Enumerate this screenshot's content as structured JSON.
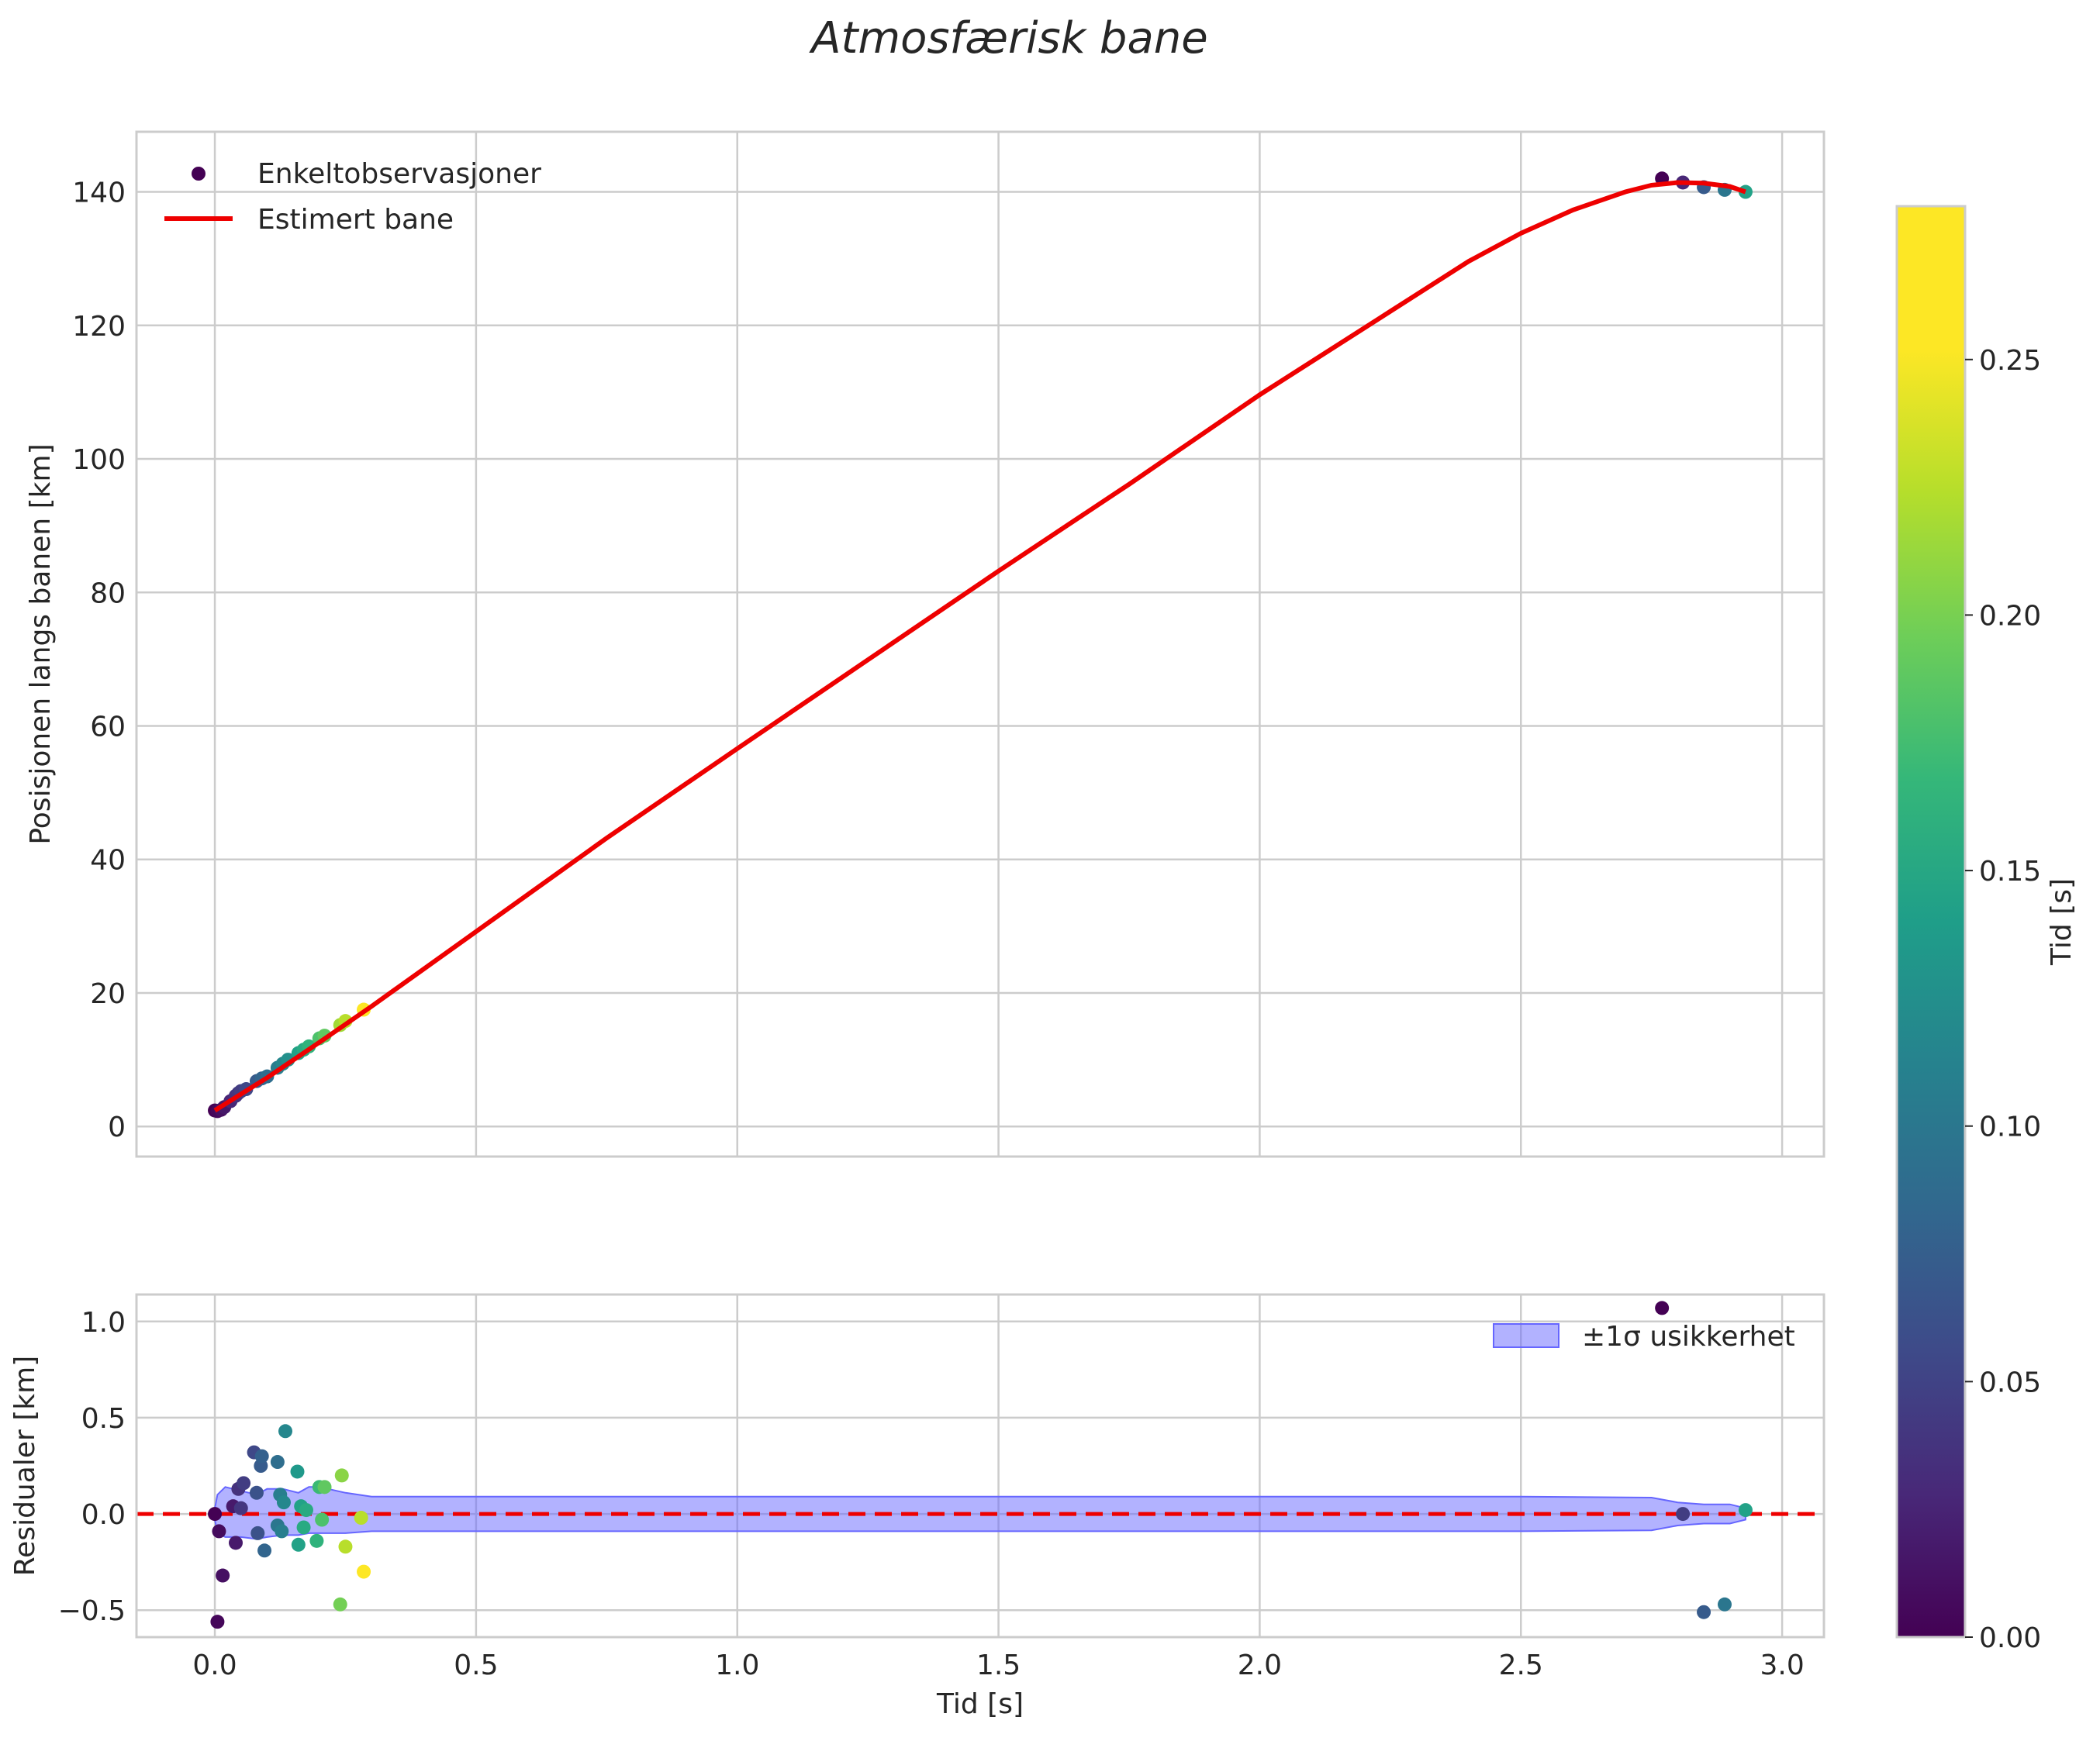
{
  "chart_data": [
    {
      "type": "scatter",
      "title": "Atmosfærisk bane",
      "xlabel": "",
      "ylabel": "Posisjonen langs banen [km]",
      "xlim": [
        -0.15,
        3.08
      ],
      "ylim": [
        -4.5,
        149
      ],
      "xticks": [
        0.0,
        0.5,
        1.0,
        1.5,
        2.0,
        2.5,
        3.0
      ],
      "yticks": [
        0,
        20,
        40,
        60,
        80,
        100,
        120,
        140
      ],
      "ytick_labels": [
        "0",
        "20",
        "40",
        "60",
        "80",
        "100",
        "120",
        "140"
      ],
      "grid": true,
      "legend_position": "upper-left",
      "legend": [
        "Enkeltobservasjoner",
        "Estimert bane"
      ],
      "series": [
        {
          "name": "Enkeltobservasjoner",
          "kind": "scatter",
          "colored_by": "Tid [s]",
          "points": [
            {
              "x": 0.0,
              "y": 2.4,
              "c": 0.0
            },
            {
              "x": 0.005,
              "y": 2.3,
              "c": 0.005
            },
            {
              "x": 0.012,
              "y": 2.5,
              "c": 0.012
            },
            {
              "x": 0.018,
              "y": 2.9,
              "c": 0.018
            },
            {
              "x": 0.03,
              "y": 3.8,
              "c": 0.03
            },
            {
              "x": 0.04,
              "y": 4.6,
              "c": 0.04
            },
            {
              "x": 0.045,
              "y": 5.0,
              "c": 0.045
            },
            {
              "x": 0.05,
              "y": 5.3,
              "c": 0.05
            },
            {
              "x": 0.06,
              "y": 5.6,
              "c": 0.06
            },
            {
              "x": 0.08,
              "y": 6.8,
              "c": 0.08
            },
            {
              "x": 0.09,
              "y": 7.2,
              "c": 0.09
            },
            {
              "x": 0.1,
              "y": 7.5,
              "c": 0.1
            },
            {
              "x": 0.12,
              "y": 8.8,
              "c": 0.12
            },
            {
              "x": 0.13,
              "y": 9.4,
              "c": 0.13
            },
            {
              "x": 0.14,
              "y": 10.0,
              "c": 0.14
            },
            {
              "x": 0.16,
              "y": 11.0,
              "c": 0.16
            },
            {
              "x": 0.17,
              "y": 11.5,
              "c": 0.17
            },
            {
              "x": 0.18,
              "y": 12.0,
              "c": 0.18
            },
            {
              "x": 0.2,
              "y": 13.2,
              "c": 0.2
            },
            {
              "x": 0.21,
              "y": 13.6,
              "c": 0.21
            },
            {
              "x": 0.24,
              "y": 15.2,
              "c": 0.24
            },
            {
              "x": 0.25,
              "y": 15.8,
              "c": 0.25
            },
            {
              "x": 0.285,
              "y": 17.5,
              "c": 0.28
            },
            {
              "x": 2.77,
              "y": 142.0,
              "c": 0.0
            },
            {
              "x": 2.81,
              "y": 141.4,
              "c": 0.03
            },
            {
              "x": 2.85,
              "y": 140.7,
              "c": 0.08
            },
            {
              "x": 2.89,
              "y": 140.3,
              "c": 0.11
            },
            {
              "x": 2.93,
              "y": 140.0,
              "c": 0.16
            }
          ]
        },
        {
          "name": "Estimert bane",
          "kind": "line",
          "color": "#ee0000",
          "points": [
            {
              "x": 0.0,
              "y": 2.4
            },
            {
              "x": 0.1,
              "y": 7.3
            },
            {
              "x": 0.2,
              "y": 12.6
            },
            {
              "x": 0.3,
              "y": 18.0
            },
            {
              "x": 0.5,
              "y": 29.2
            },
            {
              "x": 0.75,
              "y": 43.2
            },
            {
              "x": 1.0,
              "y": 56.6
            },
            {
              "x": 1.25,
              "y": 69.9
            },
            {
              "x": 1.5,
              "y": 83.2
            },
            {
              "x": 1.75,
              "y": 96.2
            },
            {
              "x": 2.0,
              "y": 109.6
            },
            {
              "x": 2.25,
              "y": 122.1
            },
            {
              "x": 2.4,
              "y": 129.6
            },
            {
              "x": 2.5,
              "y": 133.8
            },
            {
              "x": 2.6,
              "y": 137.3
            },
            {
              "x": 2.7,
              "y": 140.0
            },
            {
              "x": 2.75,
              "y": 141.0
            },
            {
              "x": 2.8,
              "y": 141.4
            },
            {
              "x": 2.85,
              "y": 141.3
            },
            {
              "x": 2.9,
              "y": 140.8
            },
            {
              "x": 2.93,
              "y": 140.0
            }
          ]
        }
      ]
    },
    {
      "type": "scatter",
      "title": "",
      "xlabel": "Tid [s]",
      "ylabel": "Residualer [km]",
      "xlim": [
        -0.15,
        3.08
      ],
      "ylim": [
        -0.64,
        1.14
      ],
      "xticks": [
        0.0,
        0.5,
        1.0,
        1.5,
        2.0,
        2.5,
        3.0
      ],
      "xtick_labels": [
        "0.0",
        "0.5",
        "1.0",
        "1.5",
        "2.0",
        "2.5",
        "3.0"
      ],
      "yticks": [
        -0.5,
        0.0,
        0.5,
        1.0
      ],
      "ytick_labels": [
        "−0.5",
        "0.0",
        "0.5",
        "1.0"
      ],
      "grid": true,
      "legend_position": "upper-right",
      "legend": [
        "±1σ usikkerhet"
      ],
      "zero_line": {
        "y": 0.0,
        "color": "#ee0000",
        "style": "dashed"
      },
      "band": {
        "name": "±1σ usikkerhet",
        "color": "#6666ff",
        "x": [
          0.0,
          0.005,
          0.02,
          0.05,
          0.08,
          0.1,
          0.13,
          0.16,
          0.18,
          0.2,
          0.25,
          0.3,
          0.5,
          1.0,
          1.5,
          2.0,
          2.5,
          2.75,
          2.8,
          2.85,
          2.9,
          2.93
        ],
        "upper": [
          0.03,
          0.1,
          0.14,
          0.12,
          0.1,
          0.13,
          0.13,
          0.11,
          0.14,
          0.14,
          0.11,
          0.09,
          0.09,
          0.09,
          0.09,
          0.09,
          0.09,
          0.085,
          0.06,
          0.05,
          0.05,
          0.03
        ],
        "lower": [
          -0.03,
          -0.1,
          -0.12,
          -0.12,
          -0.13,
          -0.12,
          -0.11,
          -0.11,
          -0.1,
          -0.1,
          -0.1,
          -0.09,
          -0.09,
          -0.09,
          -0.09,
          -0.09,
          -0.09,
          -0.085,
          -0.06,
          -0.05,
          -0.05,
          -0.03
        ]
      },
      "points": [
        {
          "x": 0.0,
          "y": 0.0,
          "c": 0.0
        },
        {
          "x": 0.005,
          "y": -0.56,
          "c": 0.005
        },
        {
          "x": 0.008,
          "y": -0.09,
          "c": 0.008
        },
        {
          "x": 0.015,
          "y": -0.32,
          "c": 0.012
        },
        {
          "x": 0.035,
          "y": 0.04,
          "c": 0.02
        },
        {
          "x": 0.04,
          "y": -0.15,
          "c": 0.02
        },
        {
          "x": 0.045,
          "y": 0.13,
          "c": 0.04
        },
        {
          "x": 0.05,
          "y": 0.03,
          "c": 0.045
        },
        {
          "x": 0.055,
          "y": 0.16,
          "c": 0.05
        },
        {
          "x": 0.075,
          "y": 0.32,
          "c": 0.06
        },
        {
          "x": 0.08,
          "y": 0.11,
          "c": 0.07
        },
        {
          "x": 0.082,
          "y": -0.1,
          "c": 0.07
        },
        {
          "x": 0.088,
          "y": 0.25,
          "c": 0.08
        },
        {
          "x": 0.09,
          "y": 0.3,
          "c": 0.085
        },
        {
          "x": 0.095,
          "y": -0.19,
          "c": 0.09
        },
        {
          "x": 0.12,
          "y": 0.27,
          "c": 0.1
        },
        {
          "x": 0.12,
          "y": -0.06,
          "c": 0.11
        },
        {
          "x": 0.125,
          "y": 0.1,
          "c": 0.12
        },
        {
          "x": 0.128,
          "y": -0.09,
          "c": 0.12
        },
        {
          "x": 0.132,
          "y": 0.06,
          "c": 0.13
        },
        {
          "x": 0.135,
          "y": 0.43,
          "c": 0.13
        },
        {
          "x": 0.158,
          "y": 0.22,
          "c": 0.15
        },
        {
          "x": 0.16,
          "y": -0.16,
          "c": 0.16
        },
        {
          "x": 0.165,
          "y": 0.04,
          "c": 0.16
        },
        {
          "x": 0.17,
          "y": -0.07,
          "c": 0.17
        },
        {
          "x": 0.175,
          "y": 0.02,
          "c": 0.17
        },
        {
          "x": 0.195,
          "y": -0.14,
          "c": 0.18
        },
        {
          "x": 0.2,
          "y": 0.14,
          "c": 0.19
        },
        {
          "x": 0.205,
          "y": -0.03,
          "c": 0.2
        },
        {
          "x": 0.21,
          "y": 0.14,
          "c": 0.21
        },
        {
          "x": 0.24,
          "y": -0.47,
          "c": 0.22
        },
        {
          "x": 0.243,
          "y": 0.2,
          "c": 0.23
        },
        {
          "x": 0.25,
          "y": -0.17,
          "c": 0.25
        },
        {
          "x": 0.28,
          "y": -0.02,
          "c": 0.25
        },
        {
          "x": 0.285,
          "y": -0.3,
          "c": 0.28
        },
        {
          "x": 2.77,
          "y": 1.07,
          "c": 0.0
        },
        {
          "x": 2.81,
          "y": 0.0,
          "c": 0.05
        },
        {
          "x": 2.85,
          "y": -0.51,
          "c": 0.08
        },
        {
          "x": 2.89,
          "y": -0.47,
          "c": 0.11
        },
        {
          "x": 2.93,
          "y": 0.02,
          "c": 0.16
        }
      ]
    }
  ],
  "colorbar": {
    "label": "Tid [s]",
    "range": [
      0.0,
      0.28
    ],
    "ticks": [
      0.0,
      0.05,
      0.1,
      0.15,
      0.2,
      0.25
    ],
    "tick_labels": [
      "0.00",
      "0.05",
      "0.10",
      "0.15",
      "0.20",
      "0.25"
    ],
    "colormap": "viridis"
  },
  "colors": {
    "grid": "#cccccc",
    "text": "#262626",
    "line": "#ee0000",
    "band_fill": "#6666ff"
  }
}
